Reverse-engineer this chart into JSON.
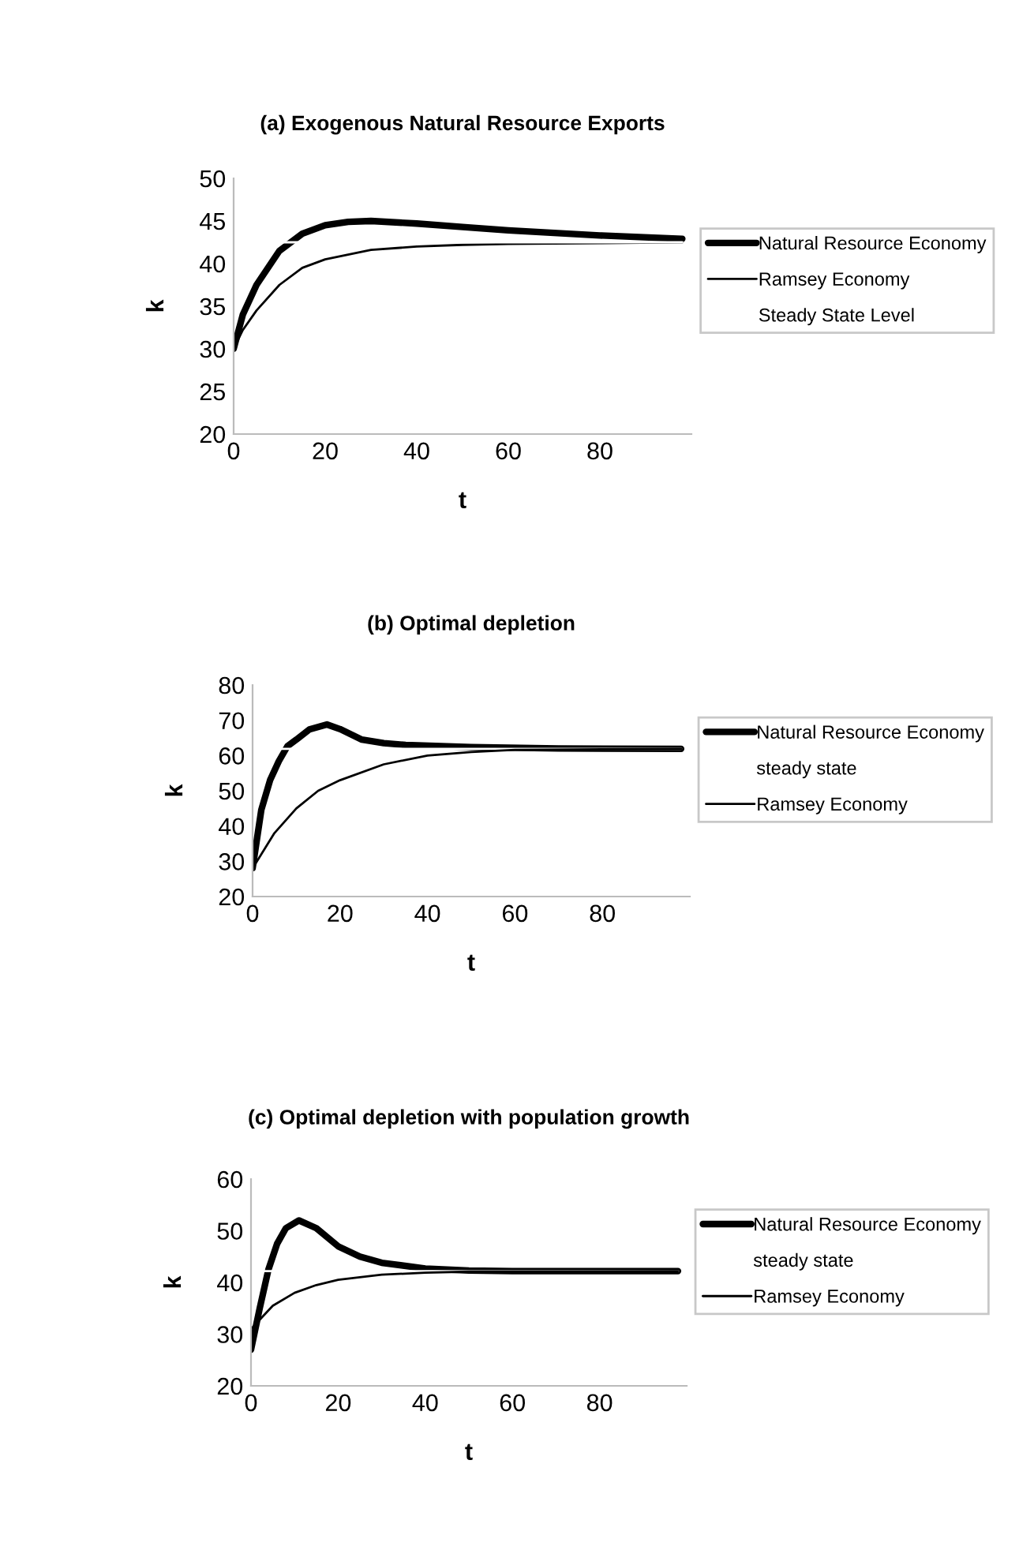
{
  "chart_data": [
    {
      "type": "line",
      "title": "(a) Exogenous Natural Resource Exports",
      "xlabel": "t",
      "ylabel": "k",
      "xlim": [
        0,
        100
      ],
      "xticks": [
        0,
        20,
        40,
        60,
        80
      ],
      "ylim": [
        20,
        50
      ],
      "yticks": [
        20,
        25,
        30,
        35,
        40,
        45,
        50
      ],
      "grid": false,
      "legend": "right",
      "series": [
        {
          "name": "Natural Resource Economy",
          "color": "#000000",
          "x": [
            0,
            2,
            5,
            10,
            15,
            20,
            25,
            30,
            40,
            50,
            60,
            70,
            80,
            98
          ],
          "values": [
            30,
            34,
            37.5,
            41.5,
            43.5,
            44.5,
            44.9,
            45,
            44.7,
            44.3,
            43.9,
            43.6,
            43.3,
            42.9
          ]
        },
        {
          "name": "Ramsey Economy",
          "color": "#000000",
          "x": [
            0,
            2,
            5,
            10,
            15,
            20,
            30,
            40,
            50,
            60,
            80,
            98
          ],
          "values": [
            30,
            32.2,
            34.5,
            37.5,
            39.5,
            40.5,
            41.6,
            42,
            42.2,
            42.3,
            42.4,
            42.5
          ]
        },
        {
          "name": "Steady State Level",
          "color": "#ffffff",
          "x": [
            0,
            98
          ],
          "values": [
            42.5,
            42.5
          ]
        }
      ]
    },
    {
      "type": "line",
      "title": "(b) Optimal depletion",
      "xlabel": "t",
      "ylabel": "k",
      "xlim": [
        0,
        100
      ],
      "xticks": [
        0,
        20,
        40,
        60,
        80
      ],
      "ylim": [
        20,
        80
      ],
      "yticks": [
        20,
        30,
        40,
        50,
        60,
        70,
        80
      ],
      "grid": false,
      "legend": "right",
      "series": [
        {
          "name": "Natural Resource Economy",
          "color": "#000000",
          "x": [
            0,
            2,
            4,
            6,
            8,
            10,
            13,
            17,
            20,
            25,
            30,
            35,
            50,
            70,
            98
          ],
          "values": [
            28,
            44.6,
            53,
            58.4,
            62.7,
            64.5,
            67.4,
            68.8,
            67.5,
            64.5,
            63.5,
            63,
            62.4,
            62,
            61.9
          ]
        },
        {
          "name": "steady state",
          "color": "#ffffff",
          "x": [
            0,
            98
          ],
          "values": [
            61.9,
            61.9
          ]
        },
        {
          "name": "Ramsey Economy",
          "color": "#000000",
          "x": [
            0,
            5,
            10,
            15,
            20,
            30,
            40,
            50,
            60,
            80,
            98
          ],
          "values": [
            28,
            38,
            45,
            50,
            53,
            57.5,
            60,
            61,
            61.6,
            61.8,
            61.9
          ]
        }
      ]
    },
    {
      "type": "line",
      "title": "(c) Optimal depletion with population growth",
      "xlabel": "t",
      "ylabel": "k",
      "xlim": [
        0,
        100
      ],
      "xticks": [
        0,
        20,
        40,
        60,
        80
      ],
      "ylim": [
        20,
        60
      ],
      "yticks": [
        20,
        30,
        40,
        50,
        60
      ],
      "grid": false,
      "legend": "right",
      "series": [
        {
          "name": "Natural Resource Economy",
          "color": "#000000",
          "x": [
            0,
            2,
            4,
            6,
            8,
            11,
            15,
            20,
            25,
            30,
            40,
            50,
            60,
            98
          ],
          "values": [
            27,
            35,
            42.5,
            47.5,
            50.5,
            52,
            50.5,
            47,
            45,
            43.8,
            42.7,
            42.3,
            42.2,
            42.2
          ]
        },
        {
          "name": "steady state",
          "color": "#ffffff",
          "x": [
            0,
            98
          ],
          "values": [
            42.2,
            42.2
          ]
        },
        {
          "name": "Ramsey Economy",
          "color": "#000000",
          "x": [
            0,
            5,
            10,
            15,
            20,
            30,
            40,
            50,
            98
          ],
          "values": [
            31,
            35.5,
            38,
            39.5,
            40.5,
            41.5,
            41.9,
            42.1,
            42.2
          ]
        }
      ]
    }
  ]
}
